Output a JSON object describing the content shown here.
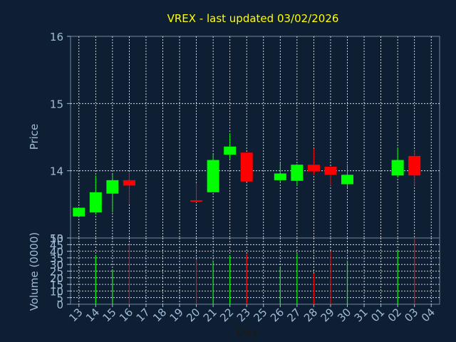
{
  "chart_data": [
    {
      "type": "candlestick",
      "title": "VREX - last updated 03/02/2026",
      "ylabel": "Price",
      "xlabel": "",
      "ylim": [
        13,
        16
      ],
      "yticks": [
        13,
        14,
        15,
        16
      ],
      "grid": true,
      "colors": {
        "up": "#00ff00",
        "down": "#ff0000",
        "title": "#ffff00",
        "axis_label": "#9fbcd6",
        "grid": "#ffffff"
      },
      "candles": [
        {
          "x": "13",
          "open": 13.32,
          "high": 13.45,
          "low": 13.32,
          "close": 13.45
        },
        {
          "x": "14",
          "open": 13.38,
          "high": 13.93,
          "low": 13.35,
          "close": 13.68
        },
        {
          "x": "15",
          "open": 13.66,
          "high": 13.95,
          "low": 13.38,
          "close": 13.86
        },
        {
          "x": "16",
          "open": 13.86,
          "high": 13.98,
          "low": 13.5,
          "close": 13.78
        },
        {
          "x": "20",
          "open": 13.56,
          "high": 13.82,
          "low": 13.53,
          "close": 13.55
        },
        {
          "x": "21",
          "open": 13.68,
          "high": 14.24,
          "low": 13.68,
          "close": 14.16
        },
        {
          "x": "22",
          "open": 14.24,
          "high": 14.56,
          "low": 14.17,
          "close": 14.36
        },
        {
          "x": "23",
          "open": 14.27,
          "high": 14.27,
          "low": 13.84,
          "close": 13.84
        },
        {
          "x": "26",
          "open": 13.86,
          "high": 14.12,
          "low": 13.82,
          "close": 13.96
        },
        {
          "x": "27",
          "open": 13.85,
          "high": 14.1,
          "low": 13.78,
          "close": 14.09
        },
        {
          "x": "28",
          "open": 14.09,
          "high": 14.33,
          "low": 13.94,
          "close": 13.99
        },
        {
          "x": "29",
          "open": 14.06,
          "high": 14.06,
          "low": 13.78,
          "close": 13.94
        },
        {
          "x": "30",
          "open": 13.8,
          "high": 14.1,
          "low": 13.75,
          "close": 13.94
        },
        {
          "x": "02",
          "open": 13.93,
          "high": 14.35,
          "low": 13.9,
          "close": 14.16
        },
        {
          "x": "03",
          "open": 14.22,
          "high": 14.3,
          "low": 13.78,
          "close": 13.93
        }
      ]
    },
    {
      "type": "bar",
      "xlabel": "Day",
      "ylabel": "Volume (0000)",
      "ylim": [
        0,
        50
      ],
      "yticks": [
        0,
        5,
        10,
        15,
        20,
        25,
        30,
        35,
        40,
        45,
        50
      ],
      "categories": [
        "13",
        "14",
        "15",
        "16",
        "17",
        "18",
        "19",
        "20",
        "21",
        "22",
        "23",
        "25",
        "26",
        "27",
        "28",
        "29",
        "30",
        "31",
        "01",
        "02",
        "03",
        "04"
      ],
      "grid": true,
      "bars": [
        {
          "x": "14",
          "value": 37,
          "direction": "up"
        },
        {
          "x": "15",
          "value": 26,
          "direction": "up"
        },
        {
          "x": "16",
          "value": 45,
          "direction": "down"
        },
        {
          "x": "20",
          "value": 34,
          "direction": "down"
        },
        {
          "x": "21",
          "value": 33,
          "direction": "up"
        },
        {
          "x": "22",
          "value": 37,
          "direction": "up"
        },
        {
          "x": "23",
          "value": 38,
          "direction": "down"
        },
        {
          "x": "26",
          "value": 28,
          "direction": "up"
        },
        {
          "x": "27",
          "value": 38,
          "direction": "up"
        },
        {
          "x": "28",
          "value": 23,
          "direction": "down"
        },
        {
          "x": "29",
          "value": 40,
          "direction": "down"
        },
        {
          "x": "30",
          "value": 33,
          "direction": "up"
        },
        {
          "x": "02",
          "value": 41,
          "direction": "up"
        },
        {
          "x": "03",
          "value": 50,
          "direction": "down"
        }
      ]
    }
  ]
}
